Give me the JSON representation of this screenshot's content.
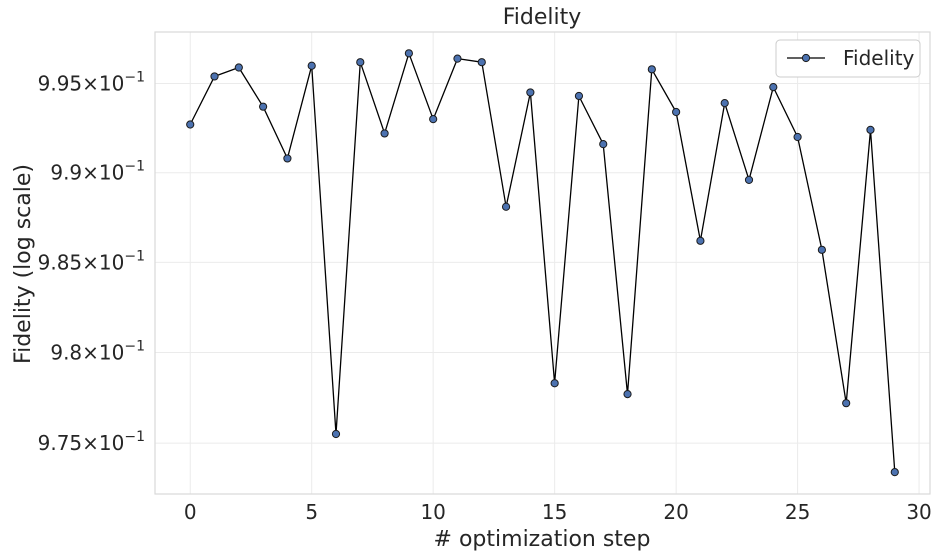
{
  "chart_data": {
    "type": "line",
    "title": "Fidelity",
    "xlabel": "# optimization step",
    "ylabel": "Fidelity (log scale)",
    "yscale": "log",
    "xlim": [
      -1.45,
      30.45
    ],
    "ylim": [
      0.9722,
      0.9979
    ],
    "xticks": [
      0,
      5,
      10,
      15,
      20,
      25,
      30
    ],
    "xtick_labels": [
      "0",
      "5",
      "10",
      "15",
      "20",
      "25",
      "30"
    ],
    "yticks": [
      0.975,
      0.98,
      0.985,
      0.99,
      0.995
    ],
    "ytick_labels": [
      {
        "mantissa": "9.75",
        "times": "×",
        "base": "10",
        "exp": "−1"
      },
      {
        "mantissa": "9.8",
        "times": "×",
        "base": "10",
        "exp": "−1"
      },
      {
        "mantissa": "9.85",
        "times": "×",
        "base": "10",
        "exp": "−1"
      },
      {
        "mantissa": "9.9",
        "times": "×",
        "base": "10",
        "exp": "−1"
      },
      {
        "mantissa": "9.95",
        "times": "×",
        "base": "10",
        "exp": "−1"
      }
    ],
    "grid": true,
    "legend": {
      "position": "top-right",
      "entries": [
        "Fidelity"
      ]
    },
    "colors": {
      "line": "#000000",
      "marker_fill": "#4c72b0",
      "marker_edge": "#1a1a1a",
      "grid": "#ebebeb",
      "axis_frame": "#d9d9d9"
    },
    "series": [
      {
        "name": "Fidelity",
        "x": [
          0,
          1,
          2,
          3,
          4,
          5,
          6,
          7,
          8,
          9,
          10,
          11,
          12,
          13,
          14,
          15,
          16,
          17,
          18,
          19,
          20,
          21,
          22,
          23,
          24,
          25,
          26,
          27,
          28,
          29
        ],
        "values": [
          0.9927,
          0.9954,
          0.9959,
          0.9937,
          0.9908,
          0.996,
          0.9755,
          0.9962,
          0.9922,
          0.9967,
          0.993,
          0.9964,
          0.9962,
          0.9881,
          0.9945,
          0.9783,
          0.9943,
          0.9916,
          0.9777,
          0.9958,
          0.9934,
          0.9862,
          0.9939,
          0.9896,
          0.9948,
          0.992,
          0.9857,
          0.9772,
          0.9924,
          0.9734
        ]
      }
    ]
  }
}
